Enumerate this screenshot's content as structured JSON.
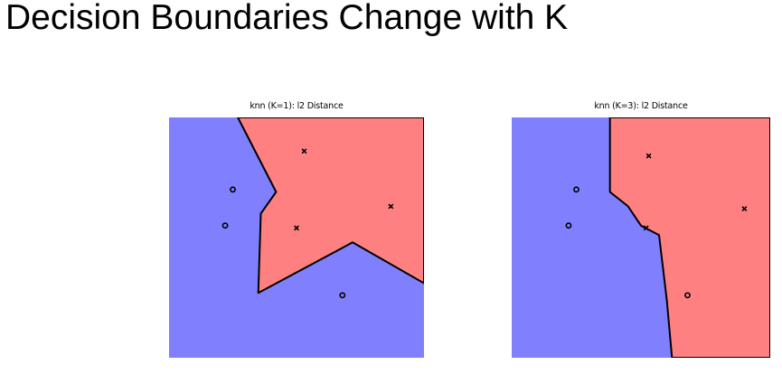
{
  "slide": {
    "title": "Decision Boundaries Change with K"
  },
  "colors": {
    "class_o_region": "#8080ff",
    "class_x_region": "#ff8080",
    "boundary": "#000000"
  },
  "panels": [
    {
      "title": "knn (K=1): l2 Distance",
      "points": [
        {
          "label": "x",
          "x": 0.53,
          "y": 0.14
        },
        {
          "label": "x",
          "x": 0.87,
          "y": 0.37
        },
        {
          "label": "x",
          "x": 0.5,
          "y": 0.46
        },
        {
          "label": "o",
          "x": 0.25,
          "y": 0.3
        },
        {
          "label": "o",
          "x": 0.22,
          "y": 0.45
        },
        {
          "label": "o",
          "x": 0.68,
          "y": 0.74
        }
      ],
      "x_region_polygon": [
        [
          0.27,
          0
        ],
        [
          1,
          0
        ],
        [
          1,
          0.69
        ],
        [
          0.72,
          0.52
        ],
        [
          0.35,
          0.73
        ],
        [
          0.36,
          0.4
        ],
        [
          0.42,
          0.31
        ]
      ]
    },
    {
      "title": "knn (K=3): l2 Distance",
      "points": [
        {
          "label": "x",
          "x": 0.53,
          "y": 0.16
        },
        {
          "label": "x",
          "x": 0.9,
          "y": 0.38
        },
        {
          "label": "x",
          "x": 0.52,
          "y": 0.46
        },
        {
          "label": "o",
          "x": 0.25,
          "y": 0.3
        },
        {
          "label": "o",
          "x": 0.22,
          "y": 0.45
        },
        {
          "label": "o",
          "x": 0.68,
          "y": 0.74
        }
      ],
      "x_region_polygon": [
        [
          0.38,
          0
        ],
        [
          1,
          0
        ],
        [
          1,
          1
        ],
        [
          0.62,
          1
        ],
        [
          0.6,
          0.76
        ],
        [
          0.57,
          0.49
        ],
        [
          0.5,
          0.45
        ],
        [
          0.45,
          0.37
        ],
        [
          0.38,
          0.31
        ]
      ]
    }
  ]
}
